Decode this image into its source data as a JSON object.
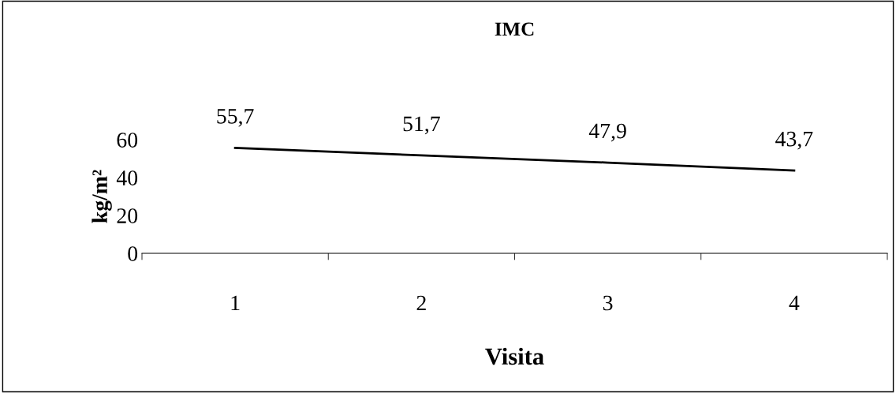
{
  "chart_data": {
    "type": "line",
    "title": "IMC",
    "xlabel": "Visita",
    "ylabel": "kg/m²",
    "categories": [
      "1",
      "2",
      "3",
      "4"
    ],
    "series": [
      {
        "color": "#000000",
        "values": [
          55.7,
          51.7,
          47.9,
          43.7
        ],
        "value_labels": [
          "55,7",
          "51,7",
          "47,9",
          "43,7"
        ]
      }
    ],
    "ylim": [
      0,
      60
    ],
    "yticks": [
      0,
      20,
      40,
      60
    ],
    "grid": false,
    "marker": "none",
    "line_style": "solid"
  }
}
